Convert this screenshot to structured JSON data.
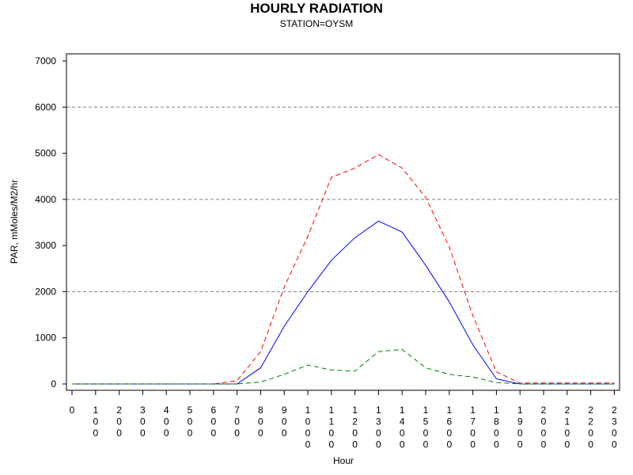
{
  "chart_data": {
    "type": "line",
    "title": "HOURLY RADIATION",
    "subtitle": "STATION=OYSM",
    "xlabel": "Hour",
    "ylabel": "PAR, mMoles/M2/hr",
    "ylim": [
      0,
      7100
    ],
    "yticks": [
      0,
      1000,
      2000,
      3000,
      4000,
      5000,
      6000,
      7000
    ],
    "x": [
      0,
      100,
      200,
      300,
      400,
      500,
      600,
      700,
      800,
      900,
      1000,
      1100,
      1200,
      1300,
      1400,
      1500,
      1600,
      1700,
      1800,
      1900,
      2000,
      2100,
      2200,
      2300
    ],
    "grid": "horizontal dashed at 2000, 4000, 6000",
    "series": [
      {
        "color": "#0000ff",
        "dash": "solid",
        "values": [
          0,
          0,
          0,
          0,
          0,
          0,
          0,
          0,
          350,
          1250,
          2000,
          2680,
          3170,
          3530,
          3290,
          2570,
          1780,
          850,
          110,
          0,
          0,
          0,
          0,
          0
        ]
      },
      {
        "color": "#ff0000",
        "dash": "dashed",
        "values": [
          0,
          0,
          0,
          0,
          0,
          0,
          0,
          70,
          700,
          2100,
          3200,
          4480,
          4680,
          4970,
          4680,
          4040,
          2970,
          1480,
          260,
          20,
          20,
          20,
          20,
          20
        ]
      },
      {
        "color": "#008000",
        "dash": "dashed",
        "values": [
          0,
          0,
          0,
          0,
          0,
          0,
          0,
          0,
          40,
          210,
          410,
          300,
          280,
          700,
          750,
          350,
          210,
          150,
          30,
          0,
          0,
          0,
          0,
          0
        ]
      }
    ]
  }
}
